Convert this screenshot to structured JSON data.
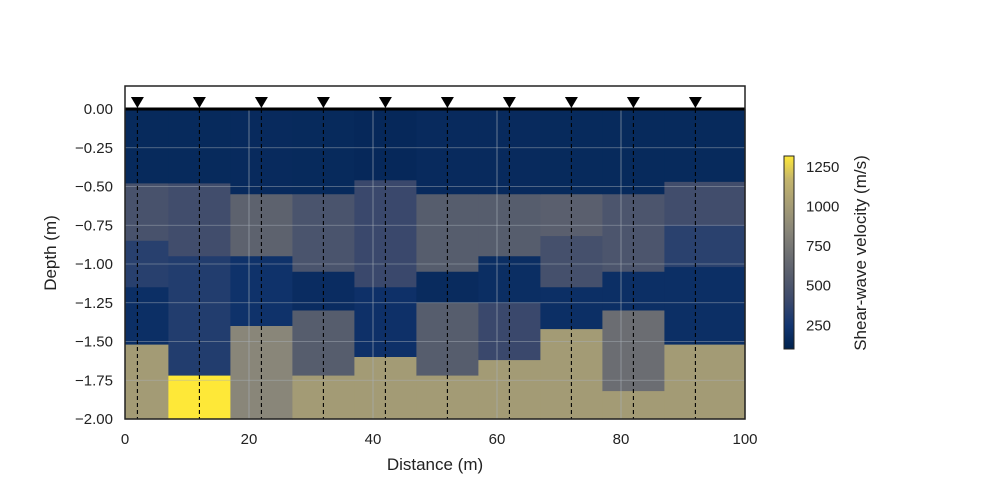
{
  "chart_data": {
    "type": "heatmap",
    "title": "",
    "xlabel": "Distance (m)",
    "ylabel": "Depth (m)",
    "xlim": [
      0,
      100
    ],
    "ylim": [
      -2.0,
      0.0
    ],
    "x_ticks": [
      "0",
      "20",
      "40",
      "60",
      "80",
      "100"
    ],
    "y_ticks": [
      "0.00",
      "−0.25",
      "−0.50",
      "−0.75",
      "−1.00",
      "−1.25",
      "−1.50",
      "−1.75",
      "−2.00"
    ],
    "colorbar": {
      "label": "Shear-wave velocity (m/s)",
      "range": [
        100,
        1320
      ],
      "ticks": [
        "250",
        "500",
        "750",
        "1000",
        "1250"
      ],
      "colormap": "cividis"
    },
    "receivers_x": [
      2,
      12,
      22,
      32,
      42,
      52,
      62,
      72,
      82,
      92
    ],
    "grid": true,
    "columns": [
      {
        "x0": 0,
        "x1": 7,
        "layers": [
          {
            "top": 0.0,
            "bottom": -0.48,
            "vs": 160
          },
          {
            "top": -0.48,
            "bottom": -0.85,
            "vs": 480
          },
          {
            "top": -0.85,
            "bottom": -1.15,
            "vs": 330
          },
          {
            "top": -1.15,
            "bottom": -1.52,
            "vs": 200
          },
          {
            "top": -1.52,
            "bottom": -2.0,
            "vs": 1000
          }
        ]
      },
      {
        "x0": 7,
        "x1": 17,
        "layers": [
          {
            "top": 0.0,
            "bottom": -0.48,
            "vs": 160
          },
          {
            "top": -0.48,
            "bottom": -0.95,
            "vs": 440
          },
          {
            "top": -0.95,
            "bottom": -1.72,
            "vs": 310
          },
          {
            "top": -1.72,
            "bottom": -2.0,
            "vs": 1320
          }
        ]
      },
      {
        "x0": 17,
        "x1": 27,
        "layers": [
          {
            "top": 0.0,
            "bottom": -0.55,
            "vs": 165
          },
          {
            "top": -0.55,
            "bottom": -0.95,
            "vs": 600
          },
          {
            "top": -0.95,
            "bottom": -1.4,
            "vs": 220
          },
          {
            "top": -1.4,
            "bottom": -2.0,
            "vs": 850
          }
        ]
      },
      {
        "x0": 27,
        "x1": 37,
        "layers": [
          {
            "top": 0.0,
            "bottom": -0.55,
            "vs": 160
          },
          {
            "top": -0.55,
            "bottom": -1.05,
            "vs": 490
          },
          {
            "top": -1.05,
            "bottom": -1.3,
            "vs": 180
          },
          {
            "top": -1.3,
            "bottom": -1.72,
            "vs": 560
          },
          {
            "top": -1.72,
            "bottom": -2.0,
            "vs": 1000
          }
        ]
      },
      {
        "x0": 37,
        "x1": 47,
        "layers": [
          {
            "top": 0.0,
            "bottom": -0.46,
            "vs": 150
          },
          {
            "top": -0.46,
            "bottom": -1.15,
            "vs": 400
          },
          {
            "top": -1.15,
            "bottom": -1.6,
            "vs": 210
          },
          {
            "top": -1.6,
            "bottom": -2.0,
            "vs": 1000
          }
        ]
      },
      {
        "x0": 47,
        "x1": 57,
        "layers": [
          {
            "top": 0.0,
            "bottom": -0.55,
            "vs": 165
          },
          {
            "top": -0.55,
            "bottom": -1.05,
            "vs": 560
          },
          {
            "top": -1.05,
            "bottom": -1.25,
            "vs": 170
          },
          {
            "top": -1.25,
            "bottom": -1.72,
            "vs": 560
          },
          {
            "top": -1.72,
            "bottom": -2.0,
            "vs": 1000
          }
        ]
      },
      {
        "x0": 57,
        "x1": 67,
        "layers": [
          {
            "top": 0.0,
            "bottom": -0.55,
            "vs": 165
          },
          {
            "top": -0.55,
            "bottom": -0.95,
            "vs": 560
          },
          {
            "top": -0.95,
            "bottom": -1.25,
            "vs": 190
          },
          {
            "top": -1.25,
            "bottom": -1.62,
            "vs": 400
          },
          {
            "top": -1.62,
            "bottom": -2.0,
            "vs": 1000
          }
        ]
      },
      {
        "x0": 67,
        "x1": 77,
        "layers": [
          {
            "top": 0.0,
            "bottom": -0.55,
            "vs": 160
          },
          {
            "top": -0.55,
            "bottom": -0.82,
            "vs": 580
          },
          {
            "top": -0.82,
            "bottom": -1.15,
            "vs": 460
          },
          {
            "top": -1.15,
            "bottom": -1.42,
            "vs": 200
          },
          {
            "top": -1.42,
            "bottom": -2.0,
            "vs": 1000
          }
        ]
      },
      {
        "x0": 77,
        "x1": 87,
        "layers": [
          {
            "top": 0.0,
            "bottom": -0.55,
            "vs": 160
          },
          {
            "top": -0.55,
            "bottom": -1.05,
            "vs": 500
          },
          {
            "top": -1.05,
            "bottom": -1.3,
            "vs": 200
          },
          {
            "top": -1.3,
            "bottom": -1.82,
            "vs": 680
          },
          {
            "top": -1.82,
            "bottom": -2.0,
            "vs": 1000
          }
        ]
      },
      {
        "x0": 87,
        "x1": 100,
        "layers": [
          {
            "top": 0.0,
            "bottom": -0.47,
            "vs": 160
          },
          {
            "top": -0.47,
            "bottom": -0.75,
            "vs": 440
          },
          {
            "top": -0.75,
            "bottom": -1.02,
            "vs": 340
          },
          {
            "top": -1.02,
            "bottom": -1.52,
            "vs": 200
          },
          {
            "top": -1.52,
            "bottom": -2.0,
            "vs": 1000
          }
        ]
      }
    ]
  }
}
